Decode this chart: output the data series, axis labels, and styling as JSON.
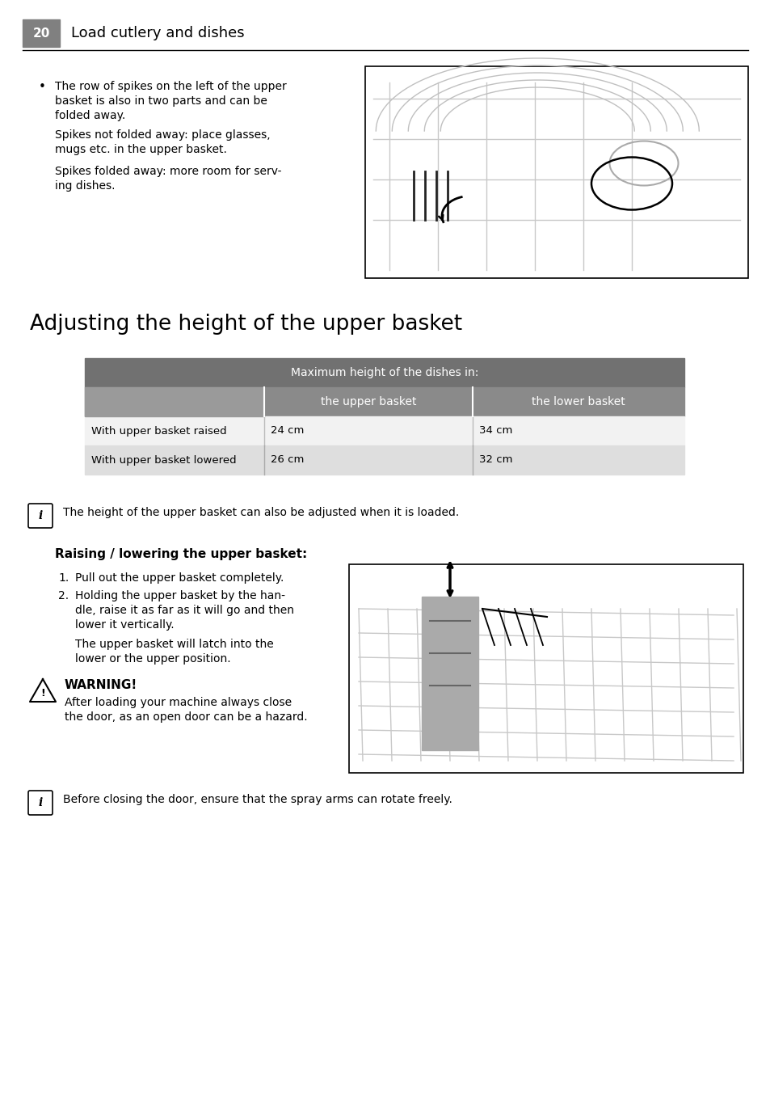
{
  "page_num": "20",
  "page_header": "Load cutlery and dishes",
  "background_color": "#ffffff",
  "section_title": "Adjusting the height of the upper basket",
  "bullet_lines": [
    "The row of spikes on the left of the upper",
    "basket is also in two parts and can be",
    "folded away."
  ],
  "para1_lines": [
    "Spikes not folded away: place glasses,",
    "mugs etc. in the upper basket."
  ],
  "para2_lines": [
    "Spikes folded away: more room for serv-",
    "ing dishes."
  ],
  "table_header_bg": "#717171",
  "table_subheader_bg": "#8a8a8a",
  "table_row1_bg": "#f2f2f2",
  "table_row2_bg": "#dedede",
  "table_header_text": "Maximum height of the dishes in:",
  "table_col1": "the upper basket",
  "table_col2": "the lower basket",
  "table_row1_label": "With upper basket raised",
  "table_row1_val1": "24 cm",
  "table_row1_val2": "34 cm",
  "table_row2_label": "With upper basket lowered",
  "table_row2_val1": "26 cm",
  "table_row2_val2": "32 cm",
  "info_text1": "The height of the upper basket can also be adjusted when it is loaded.",
  "raising_title": "Raising / lowering the upper basket:",
  "step1": "Pull out the upper basket completely.",
  "step2_lines": [
    "Holding the upper basket by the han-",
    "dle, raise it as far as it will go and then",
    "lower it vertically."
  ],
  "step2b_lines": [
    "The upper basket will latch into the",
    "lower or the upper position."
  ],
  "warning_title": "WARNING!",
  "warning_lines": [
    "After loading your machine always close",
    "the door, as an open door can be a hazard."
  ],
  "info_text2": "Before closing the door, ensure that the spray arms can rotate freely."
}
